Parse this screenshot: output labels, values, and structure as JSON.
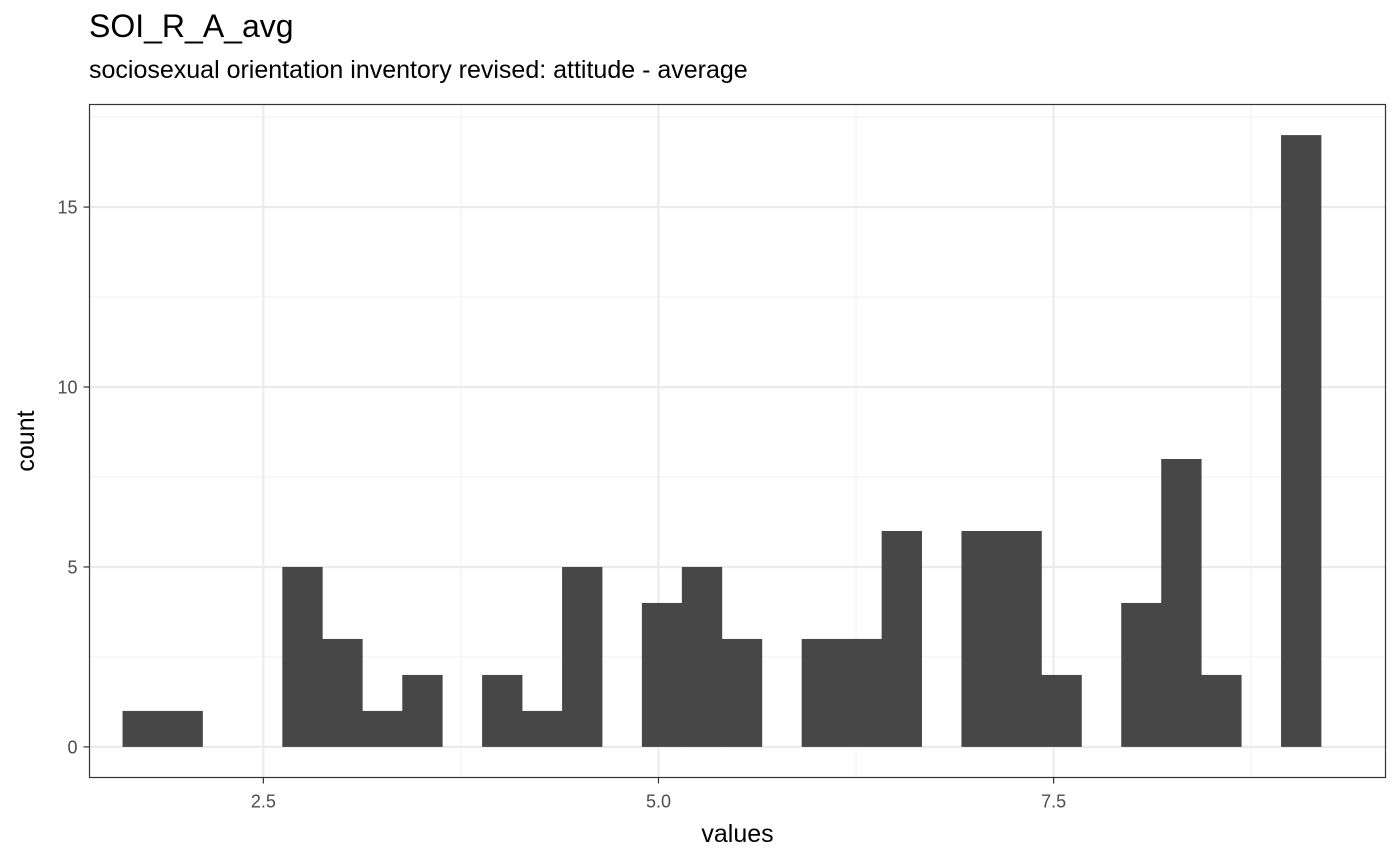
{
  "chart_data": {
    "type": "bar",
    "title": "SOI_R_A_avg",
    "subtitle": "sociosexual orientation inventory revised: attitude - average",
    "xlabel": "values",
    "ylabel": "count",
    "xlim": [
      1.4,
      9.6
    ],
    "ylim": [
      -0.85,
      17.85
    ],
    "x_ticks": [
      2.5,
      5.0,
      7.5
    ],
    "x_tick_labels": [
      "2.5",
      "5.0",
      "7.5"
    ],
    "y_ticks": [
      0,
      5,
      10,
      15
    ],
    "y_tick_labels": [
      "0",
      "5",
      "10",
      "15"
    ],
    "grid": true,
    "bin_width": 0.2527,
    "bins": [
      {
        "start": 1.609,
        "count": 1
      },
      {
        "start": 1.862,
        "count": 1
      },
      {
        "start": 2.115,
        "count": 0
      },
      {
        "start": 2.367,
        "count": 0
      },
      {
        "start": 2.62,
        "count": 5
      },
      {
        "start": 2.873,
        "count": 3
      },
      {
        "start": 3.126,
        "count": 1
      },
      {
        "start": 3.379,
        "count": 2
      },
      {
        "start": 3.631,
        "count": 0
      },
      {
        "start": 3.884,
        "count": 2
      },
      {
        "start": 4.137,
        "count": 1
      },
      {
        "start": 4.39,
        "count": 5
      },
      {
        "start": 4.642,
        "count": 0
      },
      {
        "start": 4.895,
        "count": 4
      },
      {
        "start": 5.148,
        "count": 5
      },
      {
        "start": 5.401,
        "count": 3
      },
      {
        "start": 5.653,
        "count": 0
      },
      {
        "start": 5.906,
        "count": 3
      },
      {
        "start": 6.159,
        "count": 3
      },
      {
        "start": 6.412,
        "count": 6
      },
      {
        "start": 6.664,
        "count": 0
      },
      {
        "start": 6.917,
        "count": 6
      },
      {
        "start": 7.17,
        "count": 6
      },
      {
        "start": 7.423,
        "count": 2
      },
      {
        "start": 7.675,
        "count": 0
      },
      {
        "start": 7.928,
        "count": 4
      },
      {
        "start": 8.181,
        "count": 8
      },
      {
        "start": 8.434,
        "count": 2
      },
      {
        "start": 8.686,
        "count": 0
      },
      {
        "start": 8.939,
        "count": 17
      }
    ],
    "colors": {
      "bar": "#474747",
      "panel_border": "#333333",
      "grid_major": "#ebebeb",
      "grid_minor": "#f2f2f2",
      "tick": "#333333"
    }
  }
}
